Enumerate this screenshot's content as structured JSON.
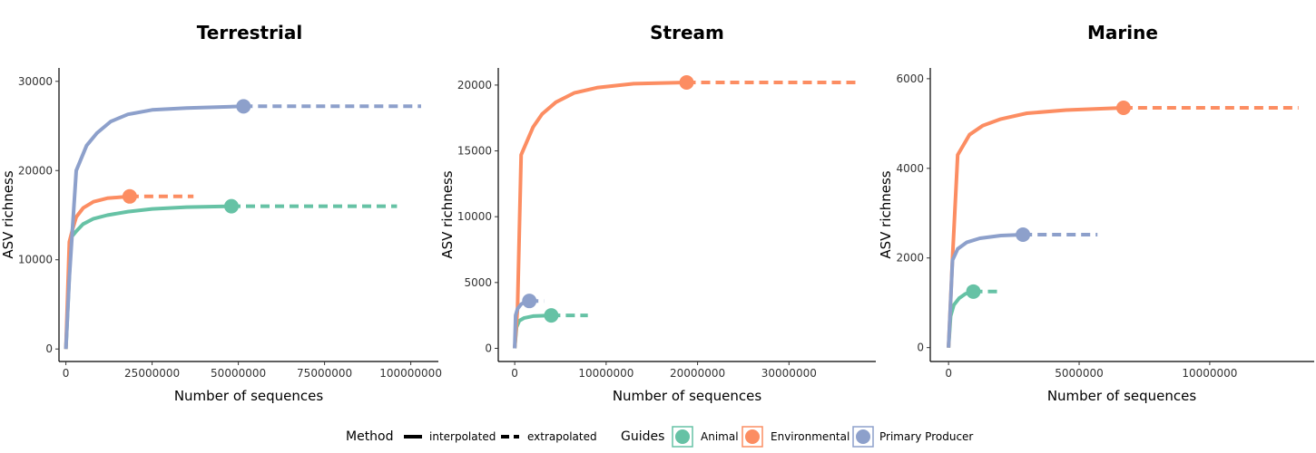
{
  "method_legend": {
    "title": "Method",
    "items": [
      {
        "label": "interpolated",
        "dash": "solid"
      },
      {
        "label": "extrapolated",
        "dash": "dashed"
      }
    ]
  },
  "guides_legend": {
    "title": "Guides",
    "items": [
      {
        "label": "Animal",
        "color": "#66c2a5"
      },
      {
        "label": "Environmental",
        "color": "#fc8d62"
      },
      {
        "label": "Primary Producer",
        "color": "#8da0cb"
      }
    ]
  },
  "colors": {
    "Animal": "#66c2a5",
    "Environmental": "#fc8d62",
    "Primary Producer": "#8da0cb"
  },
  "chart_data": [
    {
      "type": "line",
      "title": "Terrestrial",
      "xlabel": "Number of sequences",
      "ylabel": "ASV richness",
      "xlim": [
        -2000000,
        108000000
      ],
      "ylim": [
        -1400,
        31500
      ],
      "xticks": [
        0,
        25000000,
        50000000,
        75000000,
        100000000
      ],
      "xtick_labels": [
        "0",
        "25000000",
        "50000000",
        "75000000",
        "100000000"
      ],
      "yticks": [
        0,
        10000,
        20000,
        30000
      ],
      "ytick_labels": [
        "0",
        "10000",
        "20000",
        "30000"
      ],
      "series": [
        {
          "name": "Animal",
          "color": "#66c2a5",
          "observed": [
            48000000,
            16000
          ],
          "interpolated": [
            [
              0,
              0
            ],
            [
              1500000,
              12500
            ],
            [
              3000000,
              13200
            ],
            [
              5000000,
              14000
            ],
            [
              8000000,
              14600
            ],
            [
              12000000,
              15000
            ],
            [
              18000000,
              15400
            ],
            [
              25000000,
              15700
            ],
            [
              35000000,
              15900
            ],
            [
              48000000,
              16000
            ]
          ],
          "extrapolated": [
            [
              48000000,
              16000
            ],
            [
              96000000,
              16000
            ]
          ]
        },
        {
          "name": "Environmental",
          "color": "#fc8d62",
          "observed": [
            18500000,
            17100
          ],
          "interpolated": [
            [
              0,
              0
            ],
            [
              1000000,
              12000
            ],
            [
              2000000,
              13500
            ],
            [
              3000000,
              14800
            ],
            [
              5000000,
              15800
            ],
            [
              8000000,
              16500
            ],
            [
              12000000,
              16900
            ],
            [
              18500000,
              17100
            ]
          ],
          "extrapolated": [
            [
              18500000,
              17100
            ],
            [
              37000000,
              17100
            ]
          ]
        },
        {
          "name": "Primary Producer",
          "color": "#8da0cb",
          "observed": [
            51500000,
            27200
          ],
          "interpolated": [
            [
              0,
              0
            ],
            [
              1000000,
              8000
            ],
            [
              3000000,
              20000
            ],
            [
              6000000,
              22800
            ],
            [
              9000000,
              24200
            ],
            [
              13000000,
              25500
            ],
            [
              18000000,
              26300
            ],
            [
              25000000,
              26800
            ],
            [
              35000000,
              27000
            ],
            [
              51500000,
              27200
            ]
          ],
          "extrapolated": [
            [
              51500000,
              27200
            ],
            [
              103000000,
              27200
            ]
          ]
        }
      ]
    },
    {
      "type": "line",
      "title": "Stream",
      "xlabel": "Number of sequences",
      "ylabel": "ASV richness",
      "xlim": [
        -1800000,
        39500000
      ],
      "ylim": [
        -1000,
        21300
      ],
      "xticks": [
        0,
        10000000,
        20000000,
        30000000
      ],
      "xtick_labels": [
        "0",
        "10000000",
        "20000000",
        "30000000"
      ],
      "yticks": [
        0,
        5000,
        10000,
        15000,
        20000
      ],
      "ytick_labels": [
        "0",
        "5000",
        "10000",
        "15000",
        "20000"
      ],
      "series": [
        {
          "name": "Animal",
          "color": "#66c2a5",
          "observed": [
            4000000,
            2500
          ],
          "interpolated": [
            [
              0,
              0
            ],
            [
              200000,
              1600
            ],
            [
              500000,
              2100
            ],
            [
              1000000,
              2300
            ],
            [
              2000000,
              2450
            ],
            [
              4000000,
              2500
            ]
          ],
          "extrapolated": [
            [
              4000000,
              2500
            ],
            [
              8000000,
              2500
            ]
          ]
        },
        {
          "name": "Environmental",
          "color": "#fc8d62",
          "observed": [
            18800000,
            20200
          ],
          "interpolated": [
            [
              0,
              0
            ],
            [
              300000,
              3000
            ],
            [
              700000,
              14700
            ],
            [
              2000000,
              16800
            ],
            [
              3000000,
              17800
            ],
            [
              4500000,
              18700
            ],
            [
              6500000,
              19400
            ],
            [
              9000000,
              19800
            ],
            [
              13000000,
              20100
            ],
            [
              18800000,
              20200
            ]
          ],
          "extrapolated": [
            [
              18800000,
              20200
            ],
            [
              37500000,
              20200
            ]
          ]
        },
        {
          "name": "Primary Producer",
          "color": "#8da0cb",
          "observed": [
            1600000,
            3600
          ],
          "interpolated": [
            [
              0,
              0
            ],
            [
              100000,
              2500
            ],
            [
              300000,
              3000
            ],
            [
              700000,
              3350
            ],
            [
              1100000,
              3500
            ],
            [
              1600000,
              3600
            ]
          ],
          "extrapolated": [
            [
              1600000,
              3600
            ],
            [
              3200000,
              3600
            ]
          ]
        }
      ]
    },
    {
      "type": "line",
      "title": "Marine",
      "xlabel": "Number of sequences",
      "ylabel": "ASV richness",
      "xlim": [
        -700000,
        14000000
      ],
      "ylim": [
        -310,
        6240
      ],
      "xticks": [
        0,
        5000000,
        10000000
      ],
      "xtick_labels": [
        "0",
        "5000000",
        "10000000"
      ],
      "yticks": [
        0,
        2000,
        4000,
        6000
      ],
      "ytick_labels": [
        "0",
        "2000",
        "4000",
        "6000"
      ],
      "series": [
        {
          "name": "Animal",
          "color": "#66c2a5",
          "observed": [
            950000,
            1250
          ],
          "interpolated": [
            [
              0,
              0
            ],
            [
              80000,
              700
            ],
            [
              200000,
              950
            ],
            [
              400000,
              1100
            ],
            [
              650000,
              1200
            ],
            [
              950000,
              1250
            ]
          ],
          "extrapolated": [
            [
              950000,
              1250
            ],
            [
              1900000,
              1250
            ]
          ]
        },
        {
          "name": "Environmental",
          "color": "#fc8d62",
          "observed": [
            6700000,
            5350
          ],
          "interpolated": [
            [
              0,
              0
            ],
            [
              150000,
              2000
            ],
            [
              350000,
              4300
            ],
            [
              800000,
              4750
            ],
            [
              1300000,
              4950
            ],
            [
              2000000,
              5100
            ],
            [
              3000000,
              5230
            ],
            [
              4500000,
              5300
            ],
            [
              6700000,
              5350
            ]
          ],
          "extrapolated": [
            [
              6700000,
              5350
            ],
            [
              13400000,
              5350
            ]
          ]
        },
        {
          "name": "Primary Producer",
          "color": "#8da0cb",
          "observed": [
            2850000,
            2520
          ],
          "interpolated": [
            [
              0,
              0
            ],
            [
              150000,
              1950
            ],
            [
              350000,
              2200
            ],
            [
              700000,
              2350
            ],
            [
              1200000,
              2440
            ],
            [
              2000000,
              2500
            ],
            [
              2850000,
              2520
            ]
          ],
          "extrapolated": [
            [
              2850000,
              2520
            ],
            [
              5700000,
              2520
            ]
          ]
        }
      ]
    }
  ]
}
